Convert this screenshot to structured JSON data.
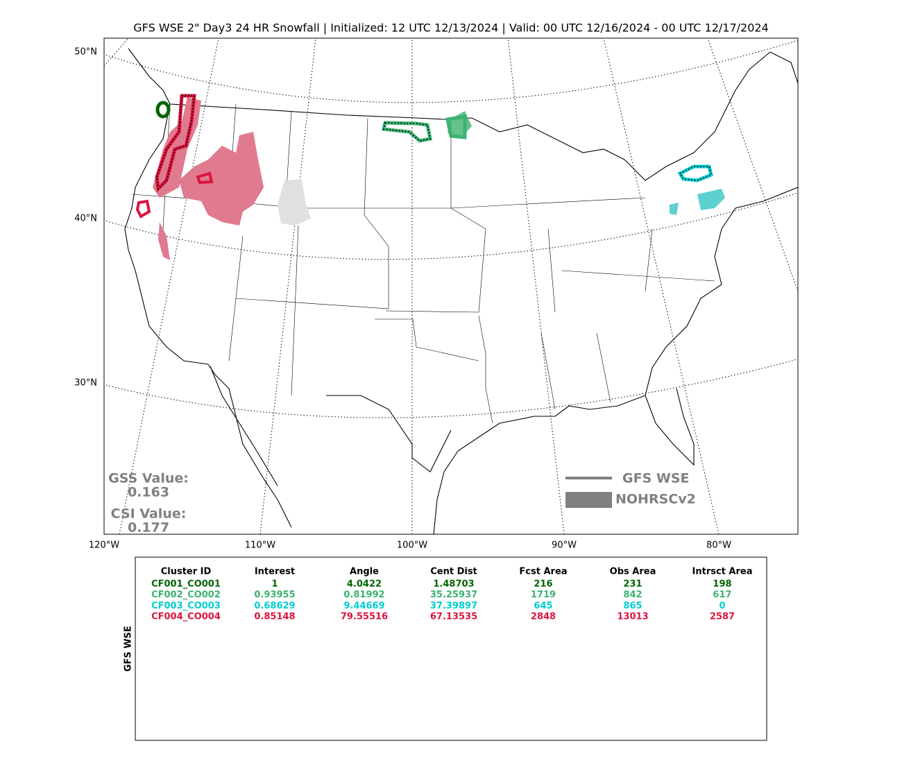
{
  "header": {
    "title": "GFS WSE 2\" Day3 24 HR Snowfall | Initialized: 12 UTC 12/13/2024 | Valid: 00 UTC 12/16/2024 - 00 UTC 12/17/2024"
  },
  "map": {
    "lat_labels": [
      "50°N",
      "40°N",
      "30°N"
    ],
    "lon_labels": [
      "120°W",
      "110°W",
      "100°W",
      "90°W",
      "80°W"
    ]
  },
  "scores": {
    "gss_label": "GSS Value:",
    "gss_value": "0.163",
    "csi_label": "CSI Value:",
    "csi_value": "0.177"
  },
  "legend": {
    "forecast": "GFS WSE",
    "observed": "NOHRSCv2"
  },
  "table": {
    "side_label": "GFS WSE",
    "headers": [
      "Cluster ID",
      "Interest",
      "Angle",
      "Cent Dist",
      "Fcst Area",
      "Obs Area",
      "Intrsct Area"
    ],
    "rows": [
      {
        "color": "#006400",
        "cells": [
          "CF001_CO001",
          "1",
          "4.0422",
          "1.48703",
          "216",
          "231",
          "198"
        ]
      },
      {
        "color": "#3cb371",
        "cells": [
          "CF002_CO002",
          "0.93955",
          "0.81992",
          "35.25937",
          "1719",
          "842",
          "617"
        ]
      },
      {
        "color": "#00ced1",
        "cells": [
          "CF003_CO003",
          "0.68629",
          "9.44669",
          "37.39897",
          "645",
          "865",
          "0"
        ]
      },
      {
        "color": "#dc143c",
        "cells": [
          "CF004_CO004",
          "0.85148",
          "79.55516",
          "67.13535",
          "2848",
          "13013",
          "2587"
        ]
      }
    ]
  }
}
